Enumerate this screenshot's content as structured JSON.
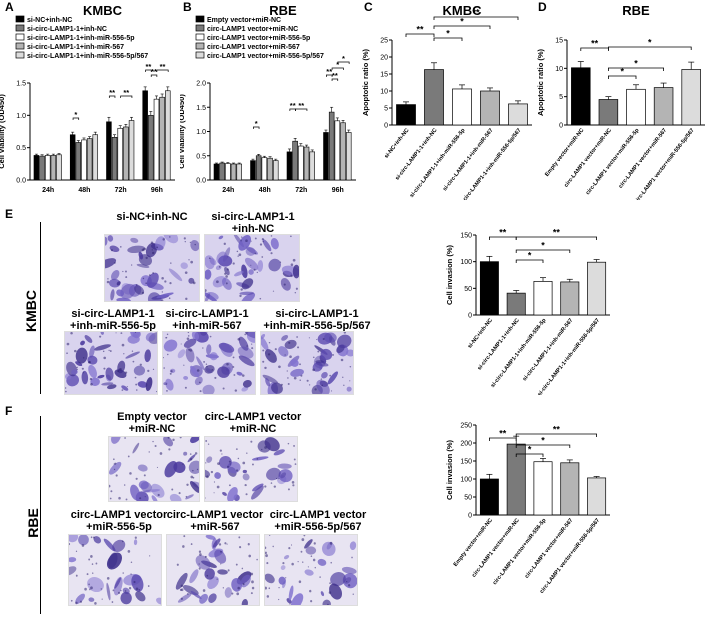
{
  "panels": {
    "A": "A",
    "B": "B",
    "C": "C",
    "D": "D",
    "E": "E",
    "F": "F"
  },
  "section_labels": {
    "kmbc": "KMBC",
    "rbe": "RBE"
  },
  "chart_data": [
    {
      "id": "A",
      "type": "bar",
      "title": "KMBC",
      "ylabel": "Cell viability (OD450)",
      "ylim": [
        0,
        1.5
      ],
      "yticks": [
        "0.0",
        "0.5",
        "1.0",
        "1.5"
      ],
      "categories": [
        "24h",
        "48h",
        "72h",
        "96h"
      ],
      "series": [
        {
          "name": "si-NC+inh-NC",
          "color": "#000000",
          "values": [
            0.38,
            0.7,
            0.9,
            1.38
          ],
          "err": [
            0.02,
            0.04,
            0.07,
            0.06
          ]
        },
        {
          "name": "si-circ-LAMP1-1+inh-NC",
          "color": "#7a7a7a",
          "values": [
            0.37,
            0.58,
            0.66,
            1.0
          ],
          "err": [
            0.02,
            0.03,
            0.04,
            0.06
          ]
        },
        {
          "name": "si-circ-LAMP1-1+inh-miR-556-5p",
          "color": "#ffffff",
          "values": [
            0.38,
            0.62,
            0.8,
            1.25
          ],
          "err": [
            0.02,
            0.03,
            0.04,
            0.05
          ]
        },
        {
          "name": "si-circ-LAMP1-1+inh-miR-567",
          "color": "#b4b4b4",
          "values": [
            0.38,
            0.64,
            0.82,
            1.28
          ],
          "err": [
            0.02,
            0.03,
            0.04,
            0.05
          ]
        },
        {
          "name": "si-circ-LAMP1-1+inh-miR-556-5p/567",
          "color": "#dcdcdc",
          "values": [
            0.39,
            0.7,
            0.92,
            1.38
          ],
          "err": [
            0.02,
            0.04,
            0.05,
            0.06
          ]
        }
      ],
      "significance": [
        "*",
        "**",
        "**",
        "**",
        "**",
        "**"
      ]
    },
    {
      "id": "B",
      "type": "bar",
      "title": "RBE",
      "ylabel": "Cell viability (OD450)",
      "ylim": [
        0,
        2.0
      ],
      "yticks": [
        "0.0",
        "0.5",
        "1.0",
        "1.5",
        "2.0"
      ],
      "categories": [
        "24h",
        "48h",
        "72h",
        "96h"
      ],
      "series": [
        {
          "name": "Empty vector+miR-NC",
          "color": "#000000",
          "values": [
            0.33,
            0.4,
            0.58,
            0.98
          ],
          "err": [
            0.02,
            0.03,
            0.06,
            0.05
          ]
        },
        {
          "name": "circ-LAMP1 vector+miR-NC",
          "color": "#7a7a7a",
          "values": [
            0.35,
            0.5,
            0.8,
            1.4
          ],
          "err": [
            0.02,
            0.03,
            0.06,
            0.1
          ]
        },
        {
          "name": "circ-LAMP1 vector+miR-556-5p",
          "color": "#ffffff",
          "values": [
            0.34,
            0.46,
            0.7,
            1.22
          ],
          "err": [
            0.02,
            0.03,
            0.05,
            0.06
          ]
        },
        {
          "name": "circ-LAMP1 vector+miR-567",
          "color": "#b4b4b4",
          "values": [
            0.33,
            0.45,
            0.68,
            1.18
          ],
          "err": [
            0.02,
            0.03,
            0.04,
            0.05
          ]
        },
        {
          "name": "circ-LAMP1 vector+miR-556-5p/567",
          "color": "#dcdcdc",
          "values": [
            0.33,
            0.4,
            0.58,
            0.98
          ],
          "err": [
            0.02,
            0.03,
            0.04,
            0.05
          ]
        }
      ],
      "significance": [
        "*",
        "**",
        "**",
        "**",
        "**",
        "*",
        "*"
      ]
    },
    {
      "id": "C",
      "type": "bar",
      "title": "KMBC",
      "ylabel": "Apoptotic ratio (%)",
      "ylim": [
        0,
        25
      ],
      "yticks": [
        "0",
        "5",
        "10",
        "15",
        "20",
        "25"
      ],
      "categories": [
        "si-NC+inh-NC",
        "si-circ-LAMP1-1+inh-NC",
        "si-circ-LAMP1-1+inh-miR-556-5p",
        "si-circ-LAMP1-1+inh-miR-567",
        "si-circ-LAMP1-1+inh-miR-556-5p/567"
      ],
      "colors": [
        "#000000",
        "#7a7a7a",
        "#ffffff",
        "#b4b4b4",
        "#dcdcdc"
      ],
      "values": [
        6.0,
        16.3,
        10.6,
        10.0,
        6.2
      ],
      "err": [
        0.8,
        2.0,
        1.2,
        0.9,
        0.9
      ],
      "significance": [
        "**",
        "*",
        "*",
        "**"
      ]
    },
    {
      "id": "D",
      "type": "bar",
      "title": "RBE",
      "ylabel": "Apoptotic ratio (%)",
      "ylim": [
        0,
        15
      ],
      "yticks": [
        "0",
        "5",
        "10",
        "15"
      ],
      "categories": [
        "Empty vector+miR-NC",
        "circ-LAMP1 vector+miR-NC",
        "circ-LAMP1 vector+miR-556-5p",
        "circ-LAMP1 vector+miR-567",
        "circ-LAMP1 vector+miR-556-5p/567"
      ],
      "colors": [
        "#000000",
        "#7a7a7a",
        "#ffffff",
        "#b4b4b4",
        "#dcdcdc"
      ],
      "values": [
        10.1,
        4.5,
        6.3,
        6.6,
        9.8
      ],
      "err": [
        1.1,
        0.5,
        0.8,
        0.8,
        1.3
      ],
      "significance": [
        "**",
        "*",
        "*",
        "*"
      ]
    },
    {
      "id": "E",
      "type": "bar",
      "title": "",
      "ylabel": "Cell invasion (%)",
      "ylim": [
        0,
        150
      ],
      "yticks": [
        "0",
        "50",
        "100",
        "150"
      ],
      "categories": [
        "si-NC+inh-NC",
        "si-circ-LAMP1-1+inh-NC",
        "si-circ-LAMP1-1+inh-miR-556-5p",
        "si-circ-LAMP1-1+inh-miR-567",
        "si-circ-LAMP1-1+inh-miR-556-5p/567"
      ],
      "colors": [
        "#000000",
        "#7a7a7a",
        "#ffffff",
        "#b4b4b4",
        "#dcdcdc"
      ],
      "values": [
        100,
        41,
        63,
        62,
        99
      ],
      "err": [
        10,
        5,
        7,
        5,
        5
      ],
      "significance": [
        "**",
        "*",
        "*",
        "**"
      ]
    },
    {
      "id": "F",
      "type": "bar",
      "title": "",
      "ylabel": "Cell invasion (%)",
      "ylim": [
        0,
        250
      ],
      "yticks": [
        "0",
        "50",
        "100",
        "150",
        "200",
        "250"
      ],
      "categories": [
        "Empty vector+miR-NC",
        "circ-LAMP1 vector+miR-NC",
        "circ-LAMP1 vector+miR-556-5p",
        "circ-LAMP1 vector+miR-567",
        "circ-LAMP1 vector+miR-556-5p/567"
      ],
      "colors": [
        "#000000",
        "#7a7a7a",
        "#ffffff",
        "#b4b4b4",
        "#dcdcdc"
      ],
      "values": [
        100,
        197,
        148,
        145,
        103
      ],
      "err": [
        13,
        22,
        9,
        8,
        4
      ],
      "significance": [
        "**",
        "*",
        "*",
        "**"
      ]
    }
  ],
  "images_e": [
    {
      "caption": "si-NC+inh-NC"
    },
    {
      "caption": "si-circ-LAMP1-1\n+inh-NC"
    },
    {
      "caption": "si-circ-LAMP1-1\n+inh-miR-556-5p"
    },
    {
      "caption": "si-circ-LAMP1-1\n+inh-miR-567"
    },
    {
      "caption": "si-circ-LAMP1-1\n+inh-miR-556-5p/567"
    }
  ],
  "images_f": [
    {
      "caption": "Empty vector\n+miR-NC"
    },
    {
      "caption": "circ-LAMP1 vector\n+miR-NC"
    },
    {
      "caption": "circ-LAMP1 vector\n+miR-556-5p"
    },
    {
      "caption": "circ-LAMP1 vector\n+miR-567"
    },
    {
      "caption": "circ-LAMP1 vector\n+miR-556-5p/567"
    }
  ]
}
